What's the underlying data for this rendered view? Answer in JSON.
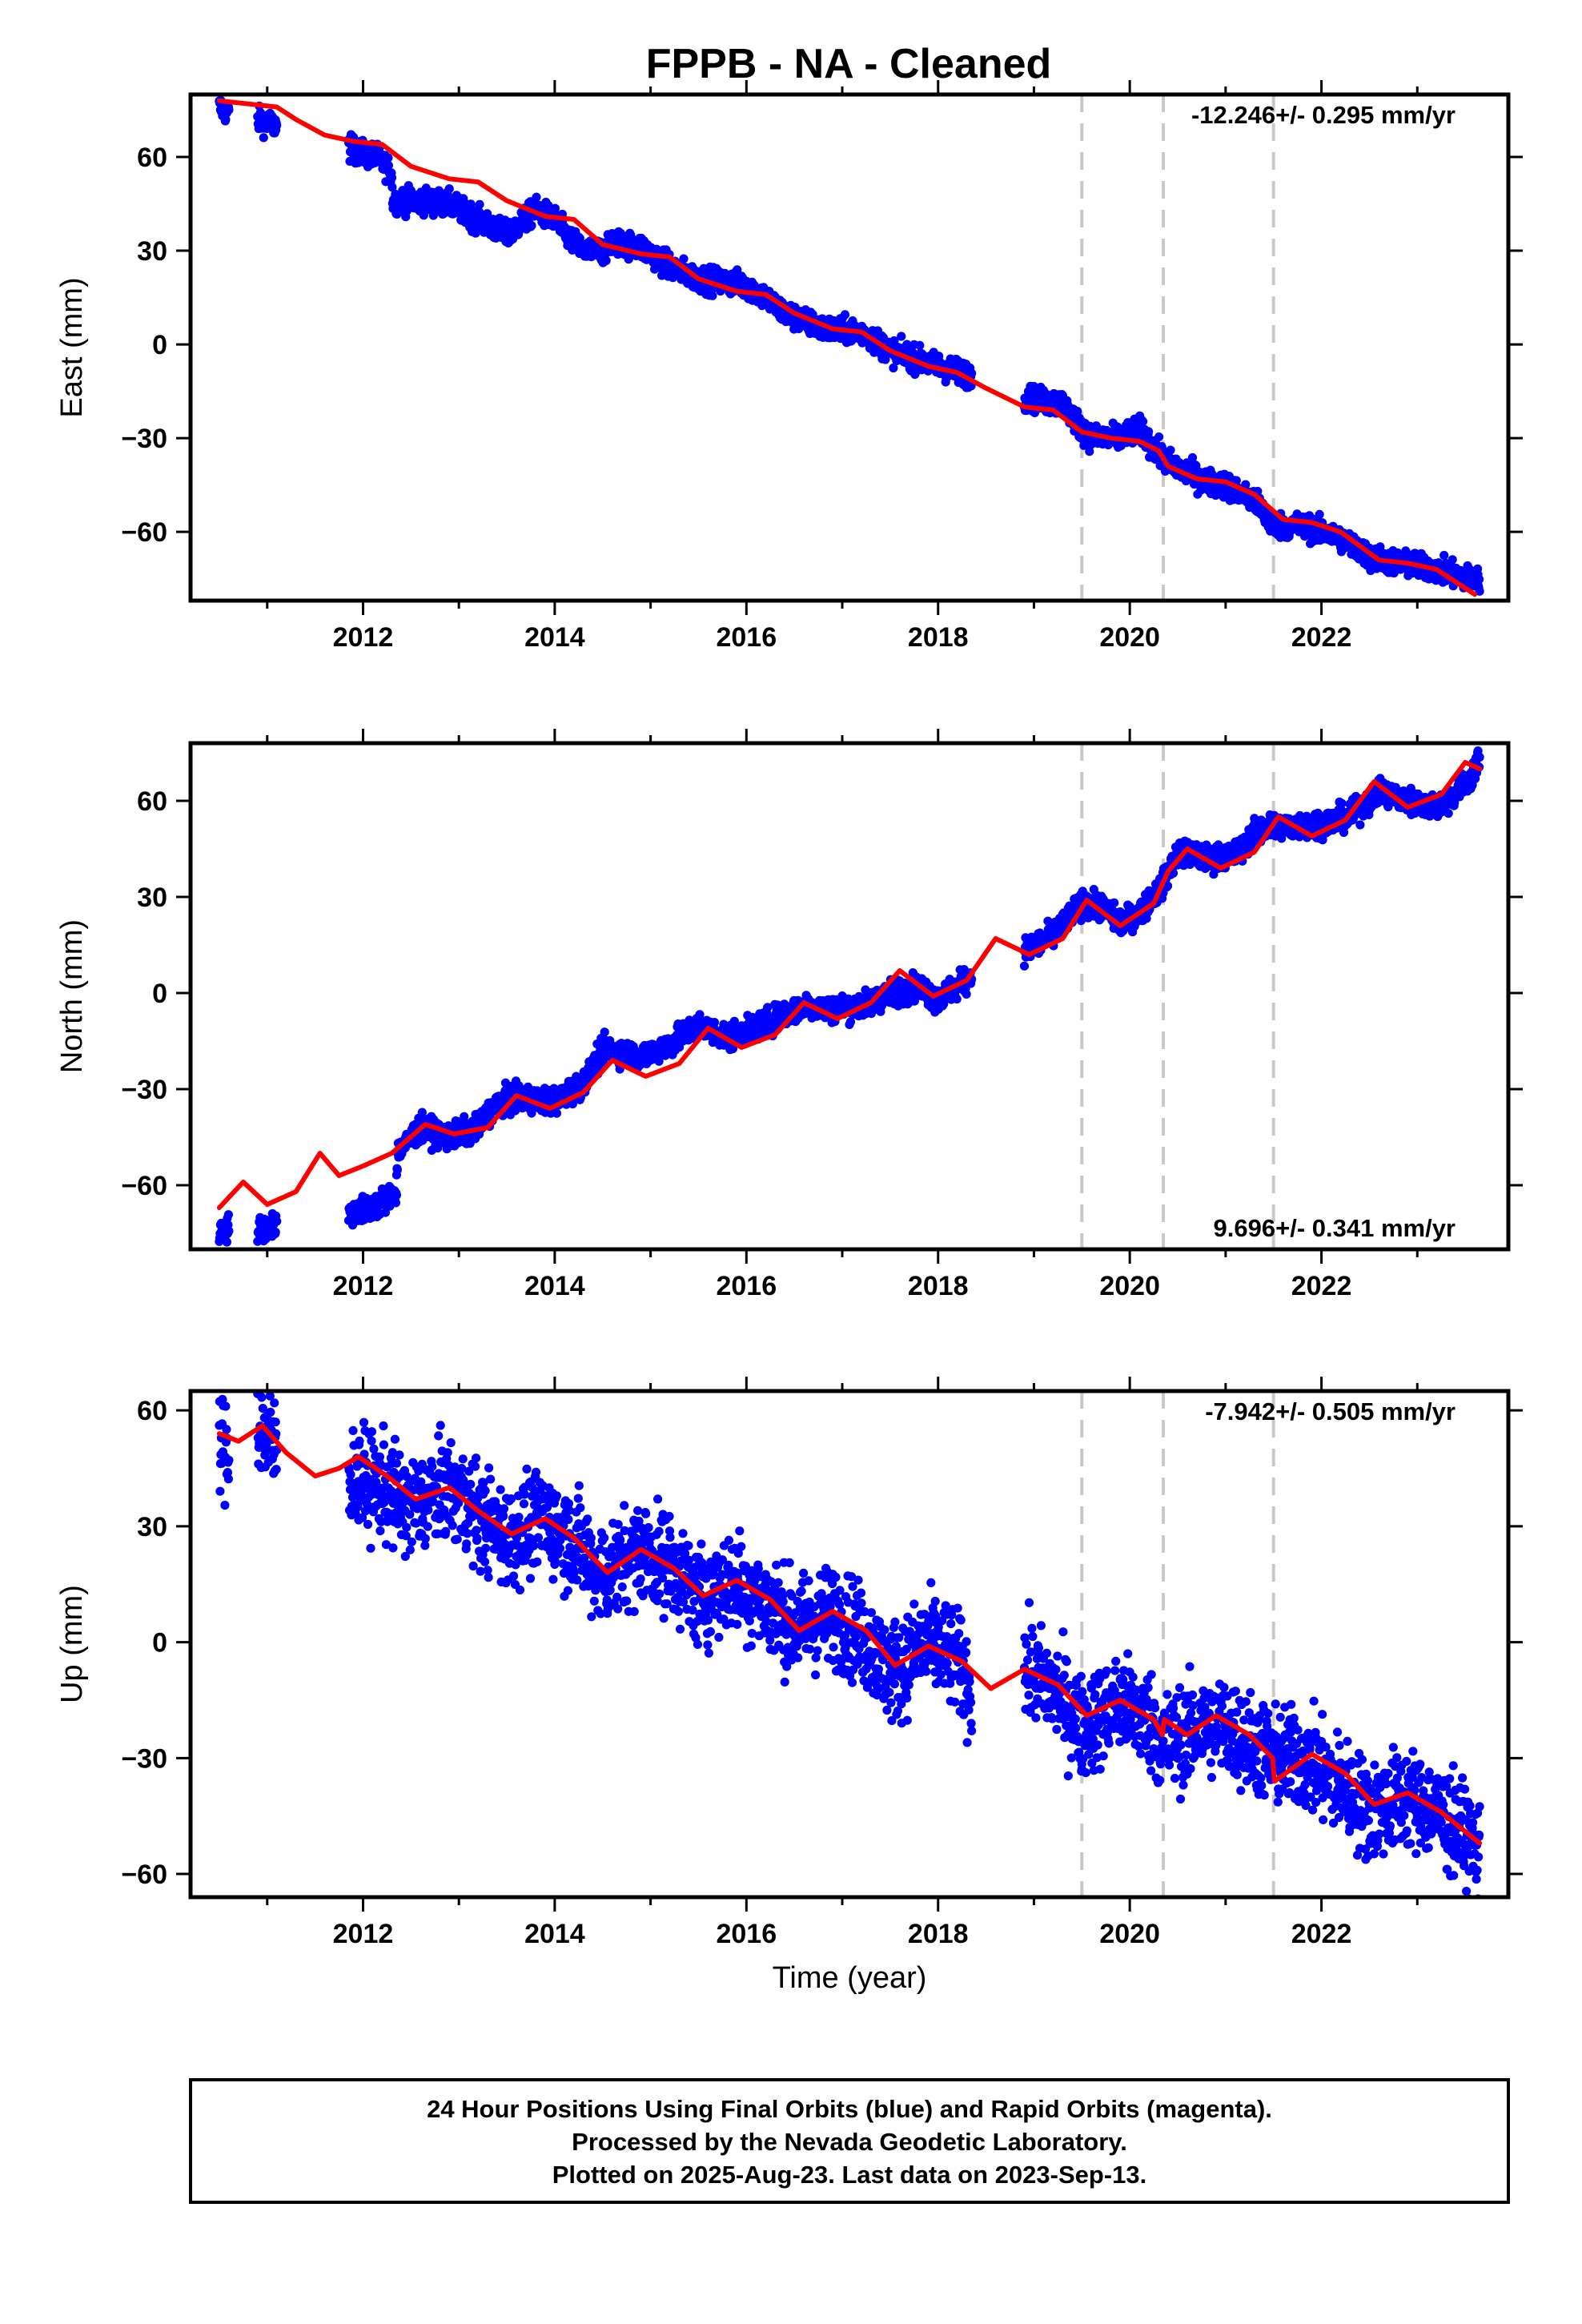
{
  "title": "FPPB  - NA - Cleaned",
  "xlabel": "Time (year)",
  "footer": {
    "line1": "24 Hour Positions Using Final Orbits (blue) and Rapid Orbits (magenta).",
    "line2": "Processed by the Nevada Geodetic Laboratory.",
    "line3": "Plotted on 2025-Aug-23. Last data on 2023-Sep-13."
  },
  "colors": {
    "final_orbits": "#0000ff",
    "model": "#ff0000",
    "steps": "#c8c8c8"
  },
  "chart_data": [
    {
      "type": "scatter",
      "component": "East",
      "ylabel": "East (mm)",
      "rate_label": "-12.246+/- 0.295 mm/yr",
      "rate_position": "top-right",
      "xlim": [
        2010.2,
        2023.95
      ],
      "ylim": [
        -82,
        80
      ],
      "x_ticks": [
        2012,
        2014,
        2016,
        2018,
        2020,
        2022
      ],
      "y_ticks": [
        60,
        30,
        0,
        -30,
        -60
      ],
      "y_tick_labels": [
        "60",
        "30",
        "0",
        "−30",
        "−60"
      ],
      "steps": [
        2019.5,
        2020.35,
        2021.5
      ],
      "grid": false,
      "data_segments": [
        [
          2010.5,
          2010.6
        ],
        [
          2010.9,
          2011.1
        ],
        [
          2011.85,
          2012.3
        ],
        [
          2012.3,
          2018.35
        ],
        [
          2018.9,
          2019.5
        ],
        [
          2019.5,
          2020.35
        ],
        [
          2020.35,
          2021.5
        ],
        [
          2021.5,
          2023.65
        ]
      ],
      "series": [
        {
          "kind": "points",
          "x": [
            2010.5,
            2010.6,
            2010.9,
            2011.1,
            2011.85,
            2012.0,
            2012.15,
            2012.3,
            2012.31,
            2012.6,
            2012.9,
            2013.2,
            2013.5,
            2013.8,
            2014.0,
            2014.15,
            2014.3,
            2014.55,
            2014.6,
            2014.9,
            2015.2,
            2015.5,
            2015.8,
            2016.0,
            2016.2,
            2016.4,
            2016.8,
            2017.2,
            2017.5,
            2017.8,
            2018.0,
            2018.35,
            2018.9,
            2019.3,
            2019.5,
            2019.6,
            2019.9,
            2020.1,
            2020.35,
            2020.6,
            2020.8,
            2021.0,
            2021.3,
            2021.5,
            2021.8,
            2022.2,
            2022.5,
            2022.8,
            2023.2,
            2023.65
          ],
          "y": [
            76,
            74,
            72,
            70,
            63,
            61,
            60,
            55,
            46,
            46,
            45,
            40,
            35,
            43,
            40,
            34,
            30,
            30,
            33,
            31,
            25,
            21,
            20,
            19,
            15,
            10,
            5,
            4,
            -2,
            -5,
            -7,
            -10,
            -17,
            -19,
            -27,
            -30,
            -30,
            -27,
            -37,
            -41,
            -44,
            -45,
            -50,
            -58,
            -58,
            -62,
            -68,
            -70,
            -72,
            -76
          ],
          "noise": 2.0
        },
        {
          "kind": "line",
          "x": [
            2010.5,
            2010.8,
            2011.1,
            2011.3,
            2011.6,
            2011.9,
            2012.2,
            2012.5,
            2012.9,
            2013.2,
            2013.5,
            2013.9,
            2014.2,
            2014.5,
            2014.9,
            2015.2,
            2015.5,
            2015.9,
            2016.2,
            2016.5,
            2016.9,
            2017.2,
            2017.5,
            2017.9,
            2018.2,
            2018.5,
            2018.9,
            2019.2,
            2019.5,
            2019.8,
            2020.1,
            2020.3,
            2020.4,
            2020.7,
            2021.0,
            2021.3,
            2021.6,
            2021.9,
            2022.2,
            2022.6,
            2022.9,
            2023.2,
            2023.6
          ],
          "y": [
            78,
            77,
            76,
            72,
            67,
            65,
            64,
            57,
            53,
            52,
            46,
            41,
            40,
            32,
            29,
            28,
            21,
            17,
            16,
            10,
            5,
            4,
            -2,
            -7,
            -9,
            -14,
            -20,
            -21,
            -28,
            -30,
            -31,
            -34,
            -39,
            -43,
            -44,
            -48,
            -56,
            -57,
            -60,
            -69,
            -70,
            -72,
            -80
          ]
        }
      ]
    },
    {
      "type": "scatter",
      "component": "North",
      "ylabel": "North (mm)",
      "rate_label": "9.696+/- 0.341 mm/yr",
      "rate_position": "bottom-right",
      "xlim": [
        2010.2,
        2023.95
      ],
      "ylim": [
        -80,
        78
      ],
      "x_ticks": [
        2012,
        2014,
        2016,
        2018,
        2020,
        2022
      ],
      "y_ticks": [
        60,
        30,
        0,
        -30,
        -60
      ],
      "y_tick_labels": [
        "60",
        "30",
        "0",
        "−30",
        "−60"
      ],
      "steps": [
        2019.5,
        2020.35,
        2021.5
      ],
      "grid": false,
      "data_segments": [
        [
          2010.5,
          2010.6
        ],
        [
          2010.9,
          2011.1
        ],
        [
          2011.85,
          2012.35
        ],
        [
          2012.35,
          2018.35
        ],
        [
          2018.9,
          2019.5
        ],
        [
          2019.5,
          2020.35
        ],
        [
          2020.35,
          2021.5
        ],
        [
          2021.5,
          2023.65
        ]
      ],
      "series": [
        {
          "kind": "points",
          "x": [
            2010.5,
            2010.6,
            2010.9,
            2011.1,
            2011.85,
            2012.1,
            2012.35,
            2012.36,
            2012.6,
            2012.9,
            2013.2,
            2013.4,
            2013.7,
            2014.0,
            2014.3,
            2014.55,
            2014.6,
            2014.9,
            2015.2,
            2015.5,
            2015.8,
            2016.0,
            2016.3,
            2016.6,
            2016.9,
            2017.2,
            2017.5,
            2017.8,
            2018.0,
            2018.35,
            2018.9,
            2019.2,
            2019.5,
            2019.7,
            2019.9,
            2020.1,
            2020.35,
            2020.5,
            2020.8,
            2021.1,
            2021.3,
            2021.5,
            2021.7,
            2022.0,
            2022.3,
            2022.6,
            2022.9,
            2023.2,
            2023.5,
            2023.65
          ],
          "y": [
            -75,
            -73,
            -74,
            -72,
            -69,
            -67,
            -62,
            -50,
            -42,
            -45,
            -42,
            -34,
            -33,
            -34,
            -28,
            -16,
            -18,
            -20,
            -16,
            -10,
            -14,
            -12,
            -8,
            -4,
            -5,
            -4,
            0,
            2,
            -2,
            5,
            13,
            18,
            28,
            27,
            22,
            25,
            34,
            44,
            42,
            43,
            50,
            52,
            52,
            53,
            55,
            63,
            60,
            58,
            65,
            72
          ],
          "noise": 2.0
        },
        {
          "kind": "line",
          "x": [
            2010.5,
            2010.75,
            2011.0,
            2011.3,
            2011.55,
            2011.75,
            2012.0,
            2012.3,
            2012.65,
            2012.95,
            2013.3,
            2013.6,
            2013.95,
            2014.3,
            2014.6,
            2014.95,
            2015.3,
            2015.6,
            2015.95,
            2016.3,
            2016.6,
            2016.95,
            2017.3,
            2017.6,
            2017.95,
            2018.3,
            2018.6,
            2018.95,
            2019.3,
            2019.55,
            2019.9,
            2020.25,
            2020.4,
            2020.6,
            2020.95,
            2021.3,
            2021.55,
            2021.9,
            2022.25,
            2022.55,
            2022.9,
            2023.25,
            2023.5,
            2023.65
          ],
          "y": [
            -67,
            -59,
            -66,
            -62,
            -50,
            -57,
            -54,
            -50,
            -41,
            -44,
            -42,
            -32,
            -36,
            -31,
            -21,
            -26,
            -22,
            -11,
            -17,
            -13,
            -3,
            -8,
            -3,
            7,
            -1,
            4,
            17,
            12,
            17,
            29,
            21,
            28,
            38,
            45,
            39,
            44,
            55,
            49,
            54,
            66,
            58,
            62,
            72,
            70
          ]
        }
      ]
    },
    {
      "type": "scatter",
      "component": "Up",
      "ylabel": "Up (mm)",
      "rate_label": "-7.942+/- 0.505 mm/yr",
      "rate_position": "top-right",
      "xlim": [
        2010.2,
        2023.95
      ],
      "ylim": [
        -66,
        65
      ],
      "x_ticks": [
        2012,
        2014,
        2016,
        2018,
        2020,
        2022
      ],
      "y_ticks": [
        60,
        30,
        0,
        -30,
        -60
      ],
      "y_tick_labels": [
        "60",
        "30",
        "0",
        "−30",
        "−60"
      ],
      "steps": [
        2019.5,
        2020.35,
        2021.5
      ],
      "grid": false,
      "data_segments": [
        [
          2010.5,
          2010.6
        ],
        [
          2010.9,
          2011.1
        ],
        [
          2011.85,
          2018.35
        ],
        [
          2018.9,
          2019.5
        ],
        [
          2019.5,
          2020.35
        ],
        [
          2020.35,
          2021.5
        ],
        [
          2021.5,
          2023.65
        ]
      ],
      "series": [
        {
          "kind": "points",
          "x": [
            2010.5,
            2010.6,
            2010.9,
            2011.1,
            2011.85,
            2012.2,
            2012.5,
            2012.9,
            2013.2,
            2013.5,
            2013.9,
            2014.2,
            2014.5,
            2014.9,
            2015.2,
            2015.5,
            2015.9,
            2016.2,
            2016.5,
            2016.9,
            2017.2,
            2017.5,
            2017.9,
            2018.2,
            2018.35,
            2018.9,
            2019.2,
            2019.5,
            2019.9,
            2020.2,
            2020.35,
            2020.6,
            2020.9,
            2021.2,
            2021.5,
            2021.8,
            2022.2,
            2022.5,
            2022.9,
            2023.2,
            2023.65
          ],
          "y": [
            51,
            50,
            56,
            50,
            43,
            40,
            35,
            40,
            33,
            27,
            32,
            26,
            17,
            24,
            20,
            12,
            16,
            10,
            4,
            7,
            2,
            -8,
            0,
            -5,
            -12,
            -7,
            -12,
            -22,
            -16,
            -20,
            -26,
            -24,
            -21,
            -25,
            -30,
            -30,
            -37,
            -44,
            -40,
            -44,
            -54
          ],
          "noise": 6.5
        },
        {
          "kind": "line",
          "x": [
            2010.5,
            2010.7,
            2010.95,
            2011.2,
            2011.5,
            2011.75,
            2011.95,
            2012.25,
            2012.55,
            2012.9,
            2013.2,
            2013.55,
            2013.9,
            2014.2,
            2014.55,
            2014.9,
            2015.25,
            2015.55,
            2015.9,
            2016.25,
            2016.55,
            2016.9,
            2017.25,
            2017.55,
            2017.9,
            2018.25,
            2018.55,
            2018.9,
            2019.25,
            2019.55,
            2019.9,
            2020.25,
            2020.34,
            2020.36,
            2020.6,
            2020.9,
            2021.25,
            2021.49,
            2021.51,
            2021.9,
            2022.25,
            2022.55,
            2022.9,
            2023.25,
            2023.65
          ],
          "y": [
            54,
            52,
            56,
            49,
            43,
            45,
            48,
            43,
            37,
            40,
            34,
            28,
            32,
            27,
            18,
            24,
            19,
            12,
            16,
            11,
            3,
            8,
            3,
            -6,
            -1,
            -5,
            -12,
            -7,
            -11,
            -19,
            -15,
            -20,
            -24,
            -20,
            -24,
            -19,
            -24,
            -30,
            -36,
            -29,
            -34,
            -42,
            -39,
            -44,
            -52
          ]
        }
      ]
    }
  ]
}
